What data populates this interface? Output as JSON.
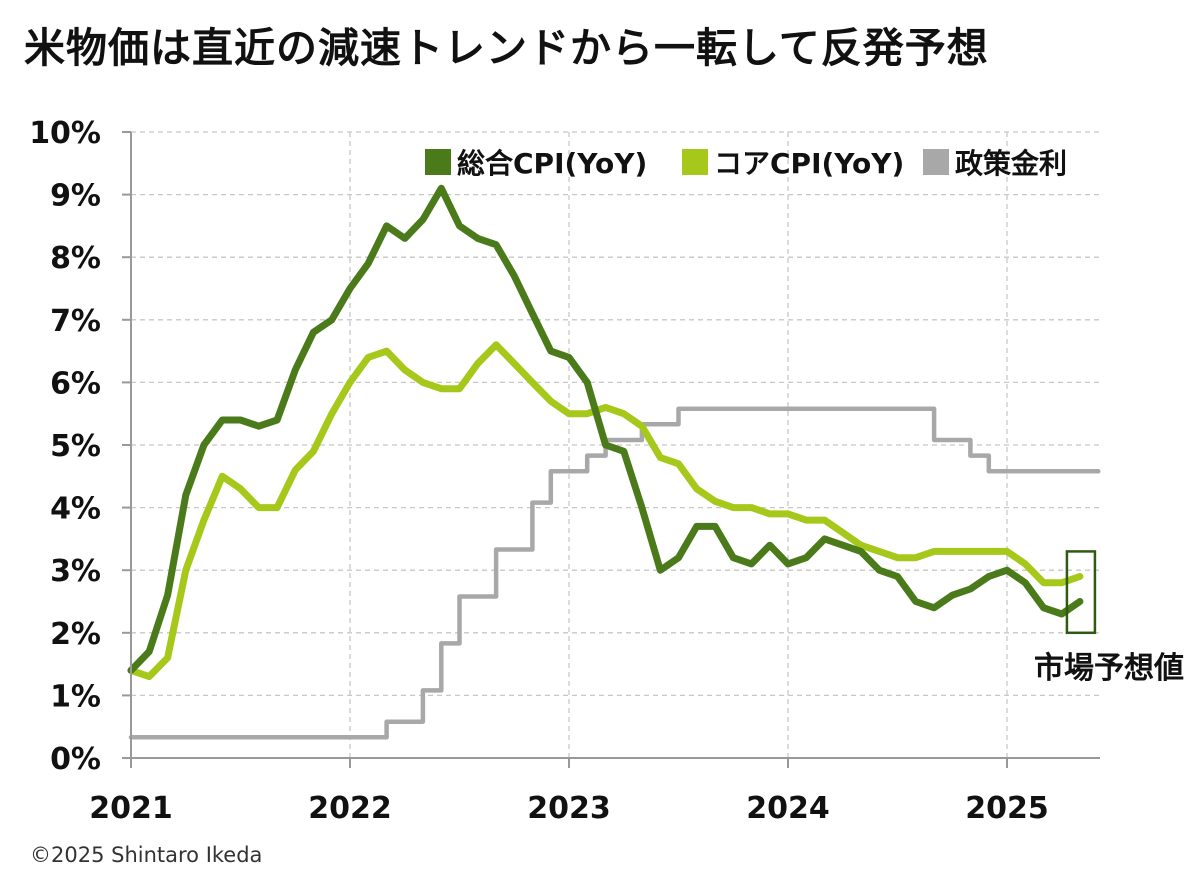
{
  "title": "米物価は直近の減速トレンドから一転して反発予想",
  "copyright": "©2025 Shintaro Ikeda",
  "chart_data": {
    "type": "line",
    "title": "米物価は直近の減速トレンドから一転して反発予想",
    "xlabel": "",
    "ylabel": "",
    "xlim": [
      2021.0,
      2025.5
    ],
    "ylim": [
      0,
      10
    ],
    "grid": true,
    "legend_position": "top-right",
    "x_ticks": [
      "2021",
      "2022",
      "2023",
      "2024",
      "2025"
    ],
    "y_ticks": [
      "0%",
      "1%",
      "2%",
      "3%",
      "4%",
      "5%",
      "6%",
      "7%",
      "8%",
      "9%",
      "10%"
    ],
    "annotation": "市場予想値",
    "series": [
      {
        "name": "総合CPI(YoY)",
        "color": "#4a7a1a",
        "style": "line",
        "points": [
          [
            2021.0,
            1.4
          ],
          [
            2021.083,
            1.7
          ],
          [
            2021.167,
            2.6
          ],
          [
            2021.25,
            4.2
          ],
          [
            2021.333,
            5.0
          ],
          [
            2021.417,
            5.4
          ],
          [
            2021.5,
            5.4
          ],
          [
            2021.583,
            5.3
          ],
          [
            2021.667,
            5.4
          ],
          [
            2021.75,
            6.2
          ],
          [
            2021.833,
            6.8
          ],
          [
            2021.917,
            7.0
          ],
          [
            2022.0,
            7.5
          ],
          [
            2022.083,
            7.9
          ],
          [
            2022.167,
            8.5
          ],
          [
            2022.25,
            8.3
          ],
          [
            2022.333,
            8.6
          ],
          [
            2022.417,
            9.1
          ],
          [
            2022.5,
            8.5
          ],
          [
            2022.583,
            8.3
          ],
          [
            2022.667,
            8.2
          ],
          [
            2022.75,
            7.7
          ],
          [
            2022.833,
            7.1
          ],
          [
            2022.917,
            6.5
          ],
          [
            2023.0,
            6.4
          ],
          [
            2023.083,
            6.0
          ],
          [
            2023.167,
            5.0
          ],
          [
            2023.25,
            4.9
          ],
          [
            2023.333,
            4.0
          ],
          [
            2023.417,
            3.0
          ],
          [
            2023.5,
            3.2
          ],
          [
            2023.583,
            3.7
          ],
          [
            2023.667,
            3.7
          ],
          [
            2023.75,
            3.2
          ],
          [
            2023.833,
            3.1
          ],
          [
            2023.917,
            3.4
          ],
          [
            2024.0,
            3.1
          ],
          [
            2024.083,
            3.2
          ],
          [
            2024.167,
            3.5
          ],
          [
            2024.25,
            3.4
          ],
          [
            2024.333,
            3.3
          ],
          [
            2024.417,
            3.0
          ],
          [
            2024.5,
            2.9
          ],
          [
            2024.583,
            2.5
          ],
          [
            2024.667,
            2.4
          ],
          [
            2024.75,
            2.6
          ],
          [
            2024.833,
            2.7
          ],
          [
            2024.917,
            2.9
          ],
          [
            2025.0,
            3.0
          ],
          [
            2025.083,
            2.8
          ],
          [
            2025.167,
            2.4
          ],
          [
            2025.25,
            2.3
          ],
          [
            2025.333,
            2.5
          ]
        ]
      },
      {
        "name": "コアCPI(YoY)",
        "color": "#a6c81a",
        "style": "line",
        "points": [
          [
            2021.0,
            1.4
          ],
          [
            2021.083,
            1.3
          ],
          [
            2021.167,
            1.6
          ],
          [
            2021.25,
            3.0
          ],
          [
            2021.333,
            3.8
          ],
          [
            2021.417,
            4.5
          ],
          [
            2021.5,
            4.3
          ],
          [
            2021.583,
            4.0
          ],
          [
            2021.667,
            4.0
          ],
          [
            2021.75,
            4.6
          ],
          [
            2021.833,
            4.9
          ],
          [
            2021.917,
            5.5
          ],
          [
            2022.0,
            6.0
          ],
          [
            2022.083,
            6.4
          ],
          [
            2022.167,
            6.5
          ],
          [
            2022.25,
            6.2
          ],
          [
            2022.333,
            6.0
          ],
          [
            2022.417,
            5.9
          ],
          [
            2022.5,
            5.9
          ],
          [
            2022.583,
            6.3
          ],
          [
            2022.667,
            6.6
          ],
          [
            2022.75,
            6.3
          ],
          [
            2022.833,
            6.0
          ],
          [
            2022.917,
            5.7
          ],
          [
            2023.0,
            5.5
          ],
          [
            2023.083,
            5.5
          ],
          [
            2023.167,
            5.6
          ],
          [
            2023.25,
            5.5
          ],
          [
            2023.333,
            5.3
          ],
          [
            2023.417,
            4.8
          ],
          [
            2023.5,
            4.7
          ],
          [
            2023.583,
            4.3
          ],
          [
            2023.667,
            4.1
          ],
          [
            2023.75,
            4.0
          ],
          [
            2023.833,
            4.0
          ],
          [
            2023.917,
            3.9
          ],
          [
            2024.0,
            3.9
          ],
          [
            2024.083,
            3.8
          ],
          [
            2024.167,
            3.8
          ],
          [
            2024.25,
            3.6
          ],
          [
            2024.333,
            3.4
          ],
          [
            2024.417,
            3.3
          ],
          [
            2024.5,
            3.2
          ],
          [
            2024.583,
            3.2
          ],
          [
            2024.667,
            3.3
          ],
          [
            2024.75,
            3.3
          ],
          [
            2024.833,
            3.3
          ],
          [
            2024.917,
            3.3
          ],
          [
            2025.0,
            3.3
          ],
          [
            2025.083,
            3.1
          ],
          [
            2025.167,
            2.8
          ],
          [
            2025.25,
            2.8
          ],
          [
            2025.333,
            2.9
          ]
        ]
      },
      {
        "name": "政策金利",
        "color": "#a8a8a8",
        "style": "step",
        "points": [
          [
            2021.0,
            0.33
          ],
          [
            2022.167,
            0.33
          ],
          [
            2022.167,
            0.58
          ],
          [
            2022.333,
            0.58
          ],
          [
            2022.333,
            1.08
          ],
          [
            2022.417,
            1.08
          ],
          [
            2022.417,
            1.83
          ],
          [
            2022.5,
            1.83
          ],
          [
            2022.5,
            2.58
          ],
          [
            2022.667,
            2.58
          ],
          [
            2022.667,
            3.33
          ],
          [
            2022.833,
            3.33
          ],
          [
            2022.833,
            4.08
          ],
          [
            2022.917,
            4.08
          ],
          [
            2022.917,
            4.58
          ],
          [
            2023.083,
            4.58
          ],
          [
            2023.083,
            4.83
          ],
          [
            2023.167,
            4.83
          ],
          [
            2023.167,
            5.08
          ],
          [
            2023.333,
            5.08
          ],
          [
            2023.333,
            5.33
          ],
          [
            2023.5,
            5.33
          ],
          [
            2023.5,
            5.58
          ],
          [
            2024.667,
            5.58
          ],
          [
            2024.667,
            5.08
          ],
          [
            2024.833,
            5.08
          ],
          [
            2024.833,
            4.83
          ],
          [
            2024.917,
            4.83
          ],
          [
            2024.917,
            4.58
          ],
          [
            2025.417,
            4.58
          ]
        ]
      }
    ]
  }
}
